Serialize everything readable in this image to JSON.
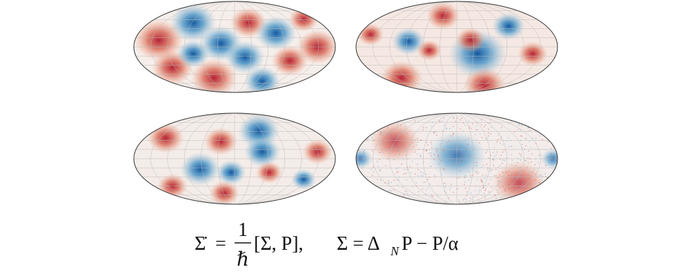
{
  "equation": {
    "lhs": "Σ̇",
    "equals": "=",
    "numerator": "1",
    "denominator": "ℏ",
    "bracket": "[Σ, P],",
    "second_lhs": "Σ = Δ",
    "subscript": "N",
    "second_rest": "P − P/α"
  }
}
